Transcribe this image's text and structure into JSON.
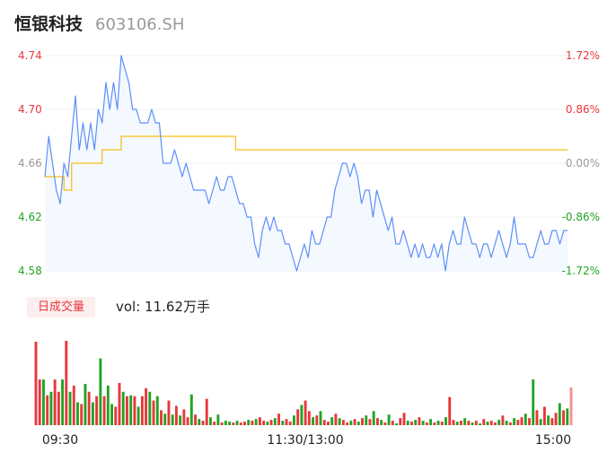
{
  "header": {
    "name": "恒银科技",
    "code": "603106.SH"
  },
  "volume_panel": {
    "tab_label": "日成交量",
    "vol_label": "vol: 11.62万手"
  },
  "colors": {
    "price": "#5b8ff9",
    "avg": "#f6bd16",
    "up": "#e8373c",
    "down": "#21a421",
    "flat": "#999999"
  },
  "chart_data": {
    "type": "line",
    "title": "",
    "price_ticks": [
      "4.74",
      "4.70",
      "4.66",
      "4.62",
      "4.58"
    ],
    "pct_ticks": [
      "1.72%",
      "0.86%",
      "0.00%",
      "-0.86%",
      "-1.72%"
    ],
    "ylim": [
      4.58,
      4.74
    ],
    "prev_close": 4.66,
    "time_labels": [
      "09:30",
      "11:30/13:00",
      "15:00"
    ],
    "series": [
      {
        "name": "price",
        "values": [
          4.65,
          4.68,
          4.66,
          4.64,
          4.63,
          4.66,
          4.65,
          4.68,
          4.71,
          4.67,
          4.69,
          4.67,
          4.69,
          4.67,
          4.7,
          4.69,
          4.72,
          4.7,
          4.72,
          4.7,
          4.74,
          4.73,
          4.72,
          4.7,
          4.7,
          4.69,
          4.69,
          4.69,
          4.7,
          4.69,
          4.69,
          4.66,
          4.66,
          4.66,
          4.67,
          4.66,
          4.65,
          4.66,
          4.65,
          4.64,
          4.64,
          4.64,
          4.64,
          4.63,
          4.64,
          4.65,
          4.64,
          4.64,
          4.65,
          4.65,
          4.64,
          4.63,
          4.63,
          4.62,
          4.62,
          4.6,
          4.59,
          4.61,
          4.62,
          4.61,
          4.62,
          4.61,
          4.61,
          4.6,
          4.6,
          4.59,
          4.58,
          4.59,
          4.6,
          4.59,
          4.61,
          4.6,
          4.6,
          4.61,
          4.62,
          4.62,
          4.64,
          4.65,
          4.66,
          4.66,
          4.65,
          4.66,
          4.65,
          4.63,
          4.64,
          4.64,
          4.62,
          4.64,
          4.63,
          4.62,
          4.61,
          4.62,
          4.6,
          4.6,
          4.61,
          4.6,
          4.59,
          4.6,
          4.59,
          4.6,
          4.59,
          4.59,
          4.6,
          4.59,
          4.6,
          4.58,
          4.6,
          4.61,
          4.6,
          4.6,
          4.62,
          4.61,
          4.6,
          4.6,
          4.59,
          4.6,
          4.6,
          4.59,
          4.6,
          4.61,
          4.6,
          4.59,
          4.6,
          4.62,
          4.6,
          4.6,
          4.6,
          4.59,
          4.59,
          4.6,
          4.61,
          4.6,
          4.6,
          4.61,
          4.61,
          4.6,
          4.61,
          4.61
        ]
      },
      {
        "name": "average",
        "values": [
          4.65,
          4.65,
          4.65,
          4.65,
          4.65,
          4.64,
          4.64,
          4.66,
          4.66,
          4.66,
          4.66,
          4.66,
          4.66,
          4.66,
          4.66,
          4.67,
          4.67,
          4.67,
          4.67,
          4.67,
          4.68,
          4.68,
          4.68,
          4.68,
          4.68,
          4.68,
          4.68,
          4.68,
          4.68,
          4.68,
          4.68,
          4.68,
          4.68,
          4.68,
          4.68,
          4.68,
          4.68,
          4.68,
          4.68,
          4.68,
          4.68,
          4.68,
          4.68,
          4.68,
          4.68,
          4.68,
          4.68,
          4.68,
          4.68,
          4.68,
          4.67,
          4.67,
          4.67,
          4.67,
          4.67,
          4.67,
          4.67,
          4.67,
          4.67,
          4.67,
          4.67,
          4.67,
          4.67,
          4.67,
          4.67,
          4.67,
          4.67,
          4.67,
          4.67,
          4.67,
          4.67,
          4.67,
          4.67,
          4.67,
          4.67,
          4.67,
          4.67,
          4.67,
          4.67,
          4.67,
          4.67,
          4.67,
          4.67,
          4.67,
          4.67,
          4.67,
          4.67,
          4.67,
          4.67,
          4.67,
          4.67,
          4.67,
          4.67,
          4.67,
          4.67,
          4.67,
          4.67,
          4.67,
          4.67,
          4.67,
          4.67,
          4.67,
          4.67,
          4.67,
          4.67,
          4.67,
          4.67,
          4.67,
          4.67,
          4.67,
          4.67,
          4.67,
          4.67,
          4.67,
          4.67,
          4.67,
          4.67,
          4.67,
          4.67,
          4.67,
          4.67,
          4.67,
          4.67,
          4.67,
          4.67,
          4.67,
          4.67,
          4.67,
          4.67,
          4.67,
          4.67,
          4.67,
          4.67,
          4.67,
          4.67,
          4.67,
          4.67,
          4.67
        ]
      }
    ],
    "volume": [
      95,
      52,
      52,
      34,
      38,
      52,
      38,
      52,
      96,
      38,
      45,
      26,
      24,
      47,
      38,
      26,
      33,
      76,
      33,
      45,
      24,
      21,
      48,
      38,
      33,
      34,
      33,
      21,
      33,
      42,
      38,
      28,
      33,
      17,
      13,
      28,
      12,
      22,
      11,
      18,
      9,
      35,
      12,
      7,
      5,
      30,
      9,
      4,
      12,
      3,
      5,
      4,
      3,
      5,
      3,
      4,
      6,
      5,
      7,
      9,
      5,
      4,
      6,
      8,
      13,
      5,
      7,
      4,
      11,
      18,
      23,
      28,
      16,
      9,
      11,
      16,
      6,
      4,
      9,
      13,
      8,
      6,
      3,
      5,
      7,
      4,
      8,
      11,
      7,
      16,
      8,
      6,
      3,
      12,
      5,
      2,
      8,
      14,
      5,
      4,
      6,
      9,
      5,
      3,
      7,
      3,
      5,
      4,
      9,
      32,
      6,
      4,
      5,
      8,
      5,
      3,
      5,
      2,
      7,
      4,
      5,
      3,
      6,
      11,
      5,
      3,
      8,
      6,
      9,
      13,
      8,
      52,
      17,
      7,
      21,
      11,
      8,
      14,
      25,
      17,
      19,
      43
    ],
    "volume_colors": [
      "up",
      "up",
      "down",
      "up",
      "down",
      "up",
      "up",
      "down",
      "up",
      "down",
      "up",
      "down",
      "up",
      "down",
      "up",
      "down",
      "up",
      "down",
      "up",
      "down",
      "down",
      "up",
      "up",
      "down",
      "up",
      "down",
      "up",
      "down",
      "up",
      "up",
      "down",
      "up",
      "down",
      "up",
      "down",
      "up",
      "down",
      "up",
      "down",
      "up",
      "up",
      "down",
      "up",
      "down",
      "up",
      "up",
      "down",
      "up",
      "down",
      "up",
      "down",
      "down",
      "up",
      "down",
      "up",
      "up",
      "down",
      "up",
      "down",
      "up",
      "up",
      "down",
      "up",
      "down",
      "up",
      "down",
      "up",
      "up",
      "down",
      "up",
      "down",
      "up",
      "up",
      "down",
      "up",
      "down",
      "up",
      "up",
      "down",
      "up",
      "down",
      "up",
      "up",
      "down",
      "up",
      "down",
      "up",
      "down",
      "up",
      "down",
      "up",
      "down",
      "up",
      "down",
      "up",
      "down",
      "up",
      "up",
      "down",
      "up",
      "down",
      "up",
      "down",
      "up",
      "down",
      "up",
      "down",
      "up",
      "down",
      "up",
      "up",
      "down",
      "up",
      "down",
      "up",
      "down",
      "up",
      "down",
      "up",
      "down",
      "up",
      "up",
      "down",
      "up",
      "down",
      "up",
      "down",
      "up",
      "up",
      "down",
      "up",
      "down",
      "up",
      "down",
      "up",
      "down",
      "up",
      "up",
      "down",
      "up",
      "down",
      "up"
    ]
  }
}
